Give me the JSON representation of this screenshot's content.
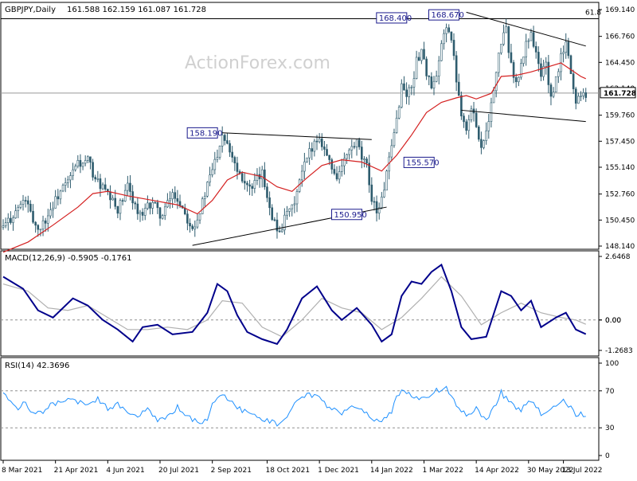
{
  "header": {
    "symbol": "GBPJPY,Daily",
    "ohlc": "161.588 162.159 161.087 161.728",
    "macd_label": "MACD(12,26,9) -0.5905 -0.1761",
    "rsi_label": "RSI(14) 42.3696",
    "watermark": "ActionForex.com"
  },
  "colors": {
    "price": "#2e5c6e",
    "ma": "#d42020",
    "macd_main": "#00008b",
    "macd_signal": "#b0b0b0",
    "rsi": "#1e90ff",
    "trendline": "#000000",
    "grid_dash": "#909090",
    "label_box_border": "#1a1a8c",
    "label_text": "#1a1a8c",
    "current_price_bg": "#ffffff"
  },
  "chart_data": [
    {
      "type": "candlestick",
      "name": "GBPJPY Daily price",
      "ylim": [
        148.14,
        169.14
      ],
      "y_ticks": [
        "169.140",
        "166.760",
        "164.450",
        "162.140",
        "159.760",
        "157.450",
        "155.140",
        "152.760",
        "150.450",
        "148.140"
      ],
      "x_ticks": [
        "8 Mar 2021",
        "21 Apr 2021",
        "4 Jun 2021",
        "20 Jul 2021",
        "2 Sep 2021",
        "18 Oct 2021",
        "1 Dec 2021",
        "14 Jan 2022",
        "1 Mar 2022",
        "14 Apr 2022",
        "30 May 2022",
        "13 Jul 2022"
      ],
      "close_path": [
        [
          0,
          149.8
        ],
        [
          3,
          150.6
        ],
        [
          6,
          151.5
        ],
        [
          9,
          152.3
        ],
        [
          11,
          150.9
        ],
        [
          14,
          149.6
        ],
        [
          17,
          150.5
        ],
        [
          20,
          151.8
        ],
        [
          23,
          153.0
        ],
        [
          26,
          153.8
        ],
        [
          28,
          154.7
        ],
        [
          30,
          155.6
        ],
        [
          32,
          155.3
        ],
        [
          34,
          155.8
        ],
        [
          36,
          154.6
        ],
        [
          38,
          153.8
        ],
        [
          40,
          153.3
        ],
        [
          42,
          152.6
        ],
        [
          44,
          152.0
        ],
        [
          46,
          151.4
        ],
        [
          48,
          152.2
        ],
        [
          50,
          153.4
        ],
        [
          52,
          152.4
        ],
        [
          54,
          151.1
        ],
        [
          56,
          150.7
        ],
        [
          58,
          151.6
        ],
        [
          60,
          152.1
        ],
        [
          62,
          151.2
        ],
        [
          64,
          150.8
        ],
        [
          66,
          151.9
        ],
        [
          68,
          152.8
        ],
        [
          70,
          152.3
        ],
        [
          72,
          151.6
        ],
        [
          74,
          150.6
        ],
        [
          76,
          149.9
        ],
        [
          78,
          150.6
        ],
        [
          80,
          152.0
        ],
        [
          82,
          153.5
        ],
        [
          84,
          155.0
        ],
        [
          86,
          156.4
        ],
        [
          88,
          158.2
        ],
        [
          90,
          157.4
        ],
        [
          92,
          156.2
        ],
        [
          94,
          155.0
        ],
        [
          96,
          154.3
        ],
        [
          98,
          153.6
        ],
        [
          100,
          153.0
        ],
        [
          102,
          154.1
        ],
        [
          104,
          154.5
        ],
        [
          106,
          152.7
        ],
        [
          108,
          150.9
        ],
        [
          110,
          149.5
        ],
        [
          112,
          149.9
        ],
        [
          114,
          151.0
        ],
        [
          116,
          151.4
        ],
        [
          118,
          152.9
        ],
        [
          120,
          154.6
        ],
        [
          122,
          155.9
        ],
        [
          124,
          157.0
        ],
        [
          126,
          157.7
        ],
        [
          128,
          157.4
        ],
        [
          130,
          156.2
        ],
        [
          132,
          155.0
        ],
        [
          134,
          154.4
        ],
        [
          136,
          155.1
        ],
        [
          138,
          156.2
        ],
        [
          140,
          156.8
        ],
        [
          142,
          157.2
        ],
        [
          144,
          155.9
        ],
        [
          146,
          155.1
        ],
        [
          148,
          152.5
        ],
        [
          150,
          151.3
        ],
        [
          152,
          152.2
        ],
        [
          154,
          154.6
        ],
        [
          156,
          156.7
        ],
        [
          158,
          159.4
        ],
        [
          160,
          162.4
        ],
        [
          162,
          161.6
        ],
        [
          164,
          162.3
        ],
        [
          166,
          164.5
        ],
        [
          168,
          165.6
        ],
        [
          170,
          163.6
        ],
        [
          172,
          162.1
        ],
        [
          174,
          162.9
        ],
        [
          176,
          165.9
        ],
        [
          178,
          167.9
        ],
        [
          180,
          166.4
        ],
        [
          182,
          163.0
        ],
        [
          184,
          160.1
        ],
        [
          186,
          158.5
        ],
        [
          188,
          160.2
        ],
        [
          190,
          159.1
        ],
        [
          192,
          156.8
        ],
        [
          194,
          158.6
        ],
        [
          196,
          160.6
        ],
        [
          198,
          163.4
        ],
        [
          200,
          166.4
        ],
        [
          202,
          167.2
        ],
        [
          204,
          164.3
        ],
        [
          206,
          162.4
        ],
        [
          208,
          164.1
        ],
        [
          210,
          166.1
        ],
        [
          212,
          167.2
        ],
        [
          214,
          165.1
        ],
        [
          216,
          163.3
        ],
        [
          218,
          164.5
        ],
        [
          220,
          161.0
        ],
        [
          222,
          162.8
        ],
        [
          224,
          164.9
        ],
        [
          226,
          166.1
        ],
        [
          228,
          163.6
        ],
        [
          230,
          160.8
        ],
        [
          232,
          161.9
        ],
        [
          234,
          161.728
        ]
      ],
      "ma_path": [
        [
          0,
          147.6
        ],
        [
          10,
          148.5
        ],
        [
          20,
          150.0
        ],
        [
          30,
          151.6
        ],
        [
          36,
          152.8
        ],
        [
          42,
          153.0
        ],
        [
          50,
          152.6
        ],
        [
          60,
          152.2
        ],
        [
          70,
          151.8
        ],
        [
          78,
          151.0
        ],
        [
          84,
          152.2
        ],
        [
          90,
          154.0
        ],
        [
          96,
          154.7
        ],
        [
          104,
          154.3
        ],
        [
          110,
          153.4
        ],
        [
          116,
          153.0
        ],
        [
          122,
          154.2
        ],
        [
          128,
          155.3
        ],
        [
          136,
          155.8
        ],
        [
          144,
          155.6
        ],
        [
          152,
          154.8
        ],
        [
          158,
          156.2
        ],
        [
          164,
          158.0
        ],
        [
          170,
          160.0
        ],
        [
          176,
          160.9
        ],
        [
          182,
          161.3
        ],
        [
          186,
          161.5
        ],
        [
          190,
          161.2
        ],
        [
          196,
          161.7
        ],
        [
          200,
          163.2
        ],
        [
          206,
          163.3
        ],
        [
          212,
          163.6
        ],
        [
          218,
          164.0
        ],
        [
          224,
          164.4
        ],
        [
          228,
          163.8
        ],
        [
          232,
          163.2
        ],
        [
          234,
          163.0
        ]
      ],
      "current_price": "161.728",
      "annotations": [
        "158.190",
        "150.950",
        "168.400",
        "168.670",
        "155.570",
        "61.8"
      ]
    },
    {
      "type": "line",
      "name": "MACD(12,26,9)",
      "ylim": [
        -1.2683,
        2.6468
      ],
      "y_ticks": [
        "2.6468",
        "0.00",
        "0.00",
        "-1.2683"
      ],
      "series": [
        {
          "name": "MACD",
          "points": [
            [
              0,
              1.8
            ],
            [
              8,
              1.3
            ],
            [
              14,
              0.4
            ],
            [
              20,
              0.1
            ],
            [
              28,
              0.9
            ],
            [
              34,
              0.6
            ],
            [
              40,
              0.0
            ],
            [
              46,
              -0.4
            ],
            [
              52,
              -0.9
            ],
            [
              56,
              -0.3
            ],
            [
              62,
              -0.2
            ],
            [
              68,
              -0.6
            ],
            [
              76,
              -0.5
            ],
            [
              82,
              0.3
            ],
            [
              86,
              1.5
            ],
            [
              90,
              1.2
            ],
            [
              94,
              0.2
            ],
            [
              98,
              -0.5
            ],
            [
              104,
              -0.8
            ],
            [
              110,
              -1.0
            ],
            [
              114,
              -0.4
            ],
            [
              120,
              0.9
            ],
            [
              126,
              1.4
            ],
            [
              132,
              0.4
            ],
            [
              136,
              0.0
            ],
            [
              142,
              0.5
            ],
            [
              148,
              -0.2
            ],
            [
              152,
              -0.9
            ],
            [
              156,
              -0.6
            ],
            [
              160,
              1.0
            ],
            [
              164,
              1.6
            ],
            [
              168,
              1.5
            ],
            [
              172,
              2.0
            ],
            [
              176,
              2.3
            ],
            [
              180,
              1.2
            ],
            [
              184,
              -0.3
            ],
            [
              188,
              -0.8
            ],
            [
              194,
              -0.7
            ],
            [
              200,
              1.2
            ],
            [
              204,
              1.0
            ],
            [
              208,
              0.4
            ],
            [
              212,
              0.8
            ],
            [
              216,
              -0.3
            ],
            [
              222,
              0.1
            ],
            [
              226,
              0.3
            ],
            [
              230,
              -0.4
            ],
            [
              234,
              -0.59
            ]
          ]
        },
        {
          "name": "Signal",
          "points": [
            [
              0,
              1.5
            ],
            [
              10,
              1.2
            ],
            [
              18,
              0.5
            ],
            [
              26,
              0.4
            ],
            [
              34,
              0.6
            ],
            [
              42,
              0.1
            ],
            [
              50,
              -0.4
            ],
            [
              58,
              -0.4
            ],
            [
              66,
              -0.3
            ],
            [
              74,
              -0.4
            ],
            [
              82,
              0.0
            ],
            [
              88,
              0.8
            ],
            [
              96,
              0.7
            ],
            [
              104,
              -0.3
            ],
            [
              112,
              -0.7
            ],
            [
              120,
              0.0
            ],
            [
              128,
              0.9
            ],
            [
              136,
              0.5
            ],
            [
              144,
              0.3
            ],
            [
              152,
              -0.4
            ],
            [
              160,
              0.1
            ],
            [
              168,
              0.9
            ],
            [
              176,
              1.8
            ],
            [
              184,
              1.0
            ],
            [
              192,
              -0.2
            ],
            [
              200,
              0.3
            ],
            [
              208,
              0.7
            ],
            [
              216,
              0.3
            ],
            [
              224,
              0.1
            ],
            [
              230,
              0.0
            ],
            [
              234,
              -0.18
            ]
          ]
        }
      ],
      "zero_line": 0
    },
    {
      "type": "line",
      "name": "RSI(14)",
      "ylim": [
        0,
        100
      ],
      "y_ticks": [
        "100",
        "70",
        "30",
        "0"
      ],
      "levels": [
        70,
        30
      ],
      "series": [
        {
          "name": "RSI",
          "points": [
            [
              0,
              68
            ],
            [
              3,
              60
            ],
            [
              6,
              52
            ],
            [
              9,
              58
            ],
            [
              12,
              44
            ],
            [
              16,
              48
            ],
            [
              20,
              56
            ],
            [
              24,
              60
            ],
            [
              28,
              62
            ],
            [
              30,
              58
            ],
            [
              34,
              54
            ],
            [
              38,
              62
            ],
            [
              42,
              50
            ],
            [
              46,
              56
            ],
            [
              50,
              48
            ],
            [
              54,
              44
            ],
            [
              58,
              50
            ],
            [
              62,
              38
            ],
            [
              66,
              42
            ],
            [
              70,
              52
            ],
            [
              74,
              44
            ],
            [
              78,
              35
            ],
            [
              82,
              40
            ],
            [
              84,
              56
            ],
            [
              88,
              68
            ],
            [
              90,
              60
            ],
            [
              94,
              52
            ],
            [
              98,
              46
            ],
            [
              102,
              42
            ],
            [
              106,
              38
            ],
            [
              110,
              34
            ],
            [
              114,
              44
            ],
            [
              118,
              58
            ],
            [
              122,
              66
            ],
            [
              126,
              64
            ],
            [
              128,
              58
            ],
            [
              132,
              50
            ],
            [
              136,
              46
            ],
            [
              140,
              56
            ],
            [
              144,
              52
            ],
            [
              148,
              40
            ],
            [
              152,
              36
            ],
            [
              156,
              48
            ],
            [
              158,
              64
            ],
            [
              160,
              70
            ],
            [
              164,
              66
            ],
            [
              168,
              60
            ],
            [
              172,
              68
            ],
            [
              176,
              72
            ],
            [
              178,
              74
            ],
            [
              182,
              56
            ],
            [
              186,
              44
            ],
            [
              190,
              50
            ],
            [
              194,
              40
            ],
            [
              198,
              54
            ],
            [
              200,
              68
            ],
            [
              204,
              56
            ],
            [
              208,
              50
            ],
            [
              212,
              58
            ],
            [
              216,
              46
            ],
            [
              220,
              52
            ],
            [
              224,
              60
            ],
            [
              226,
              58
            ],
            [
              230,
              44
            ],
            [
              232,
              46
            ],
            [
              234,
              42.37
            ]
          ]
        }
      ]
    }
  ]
}
